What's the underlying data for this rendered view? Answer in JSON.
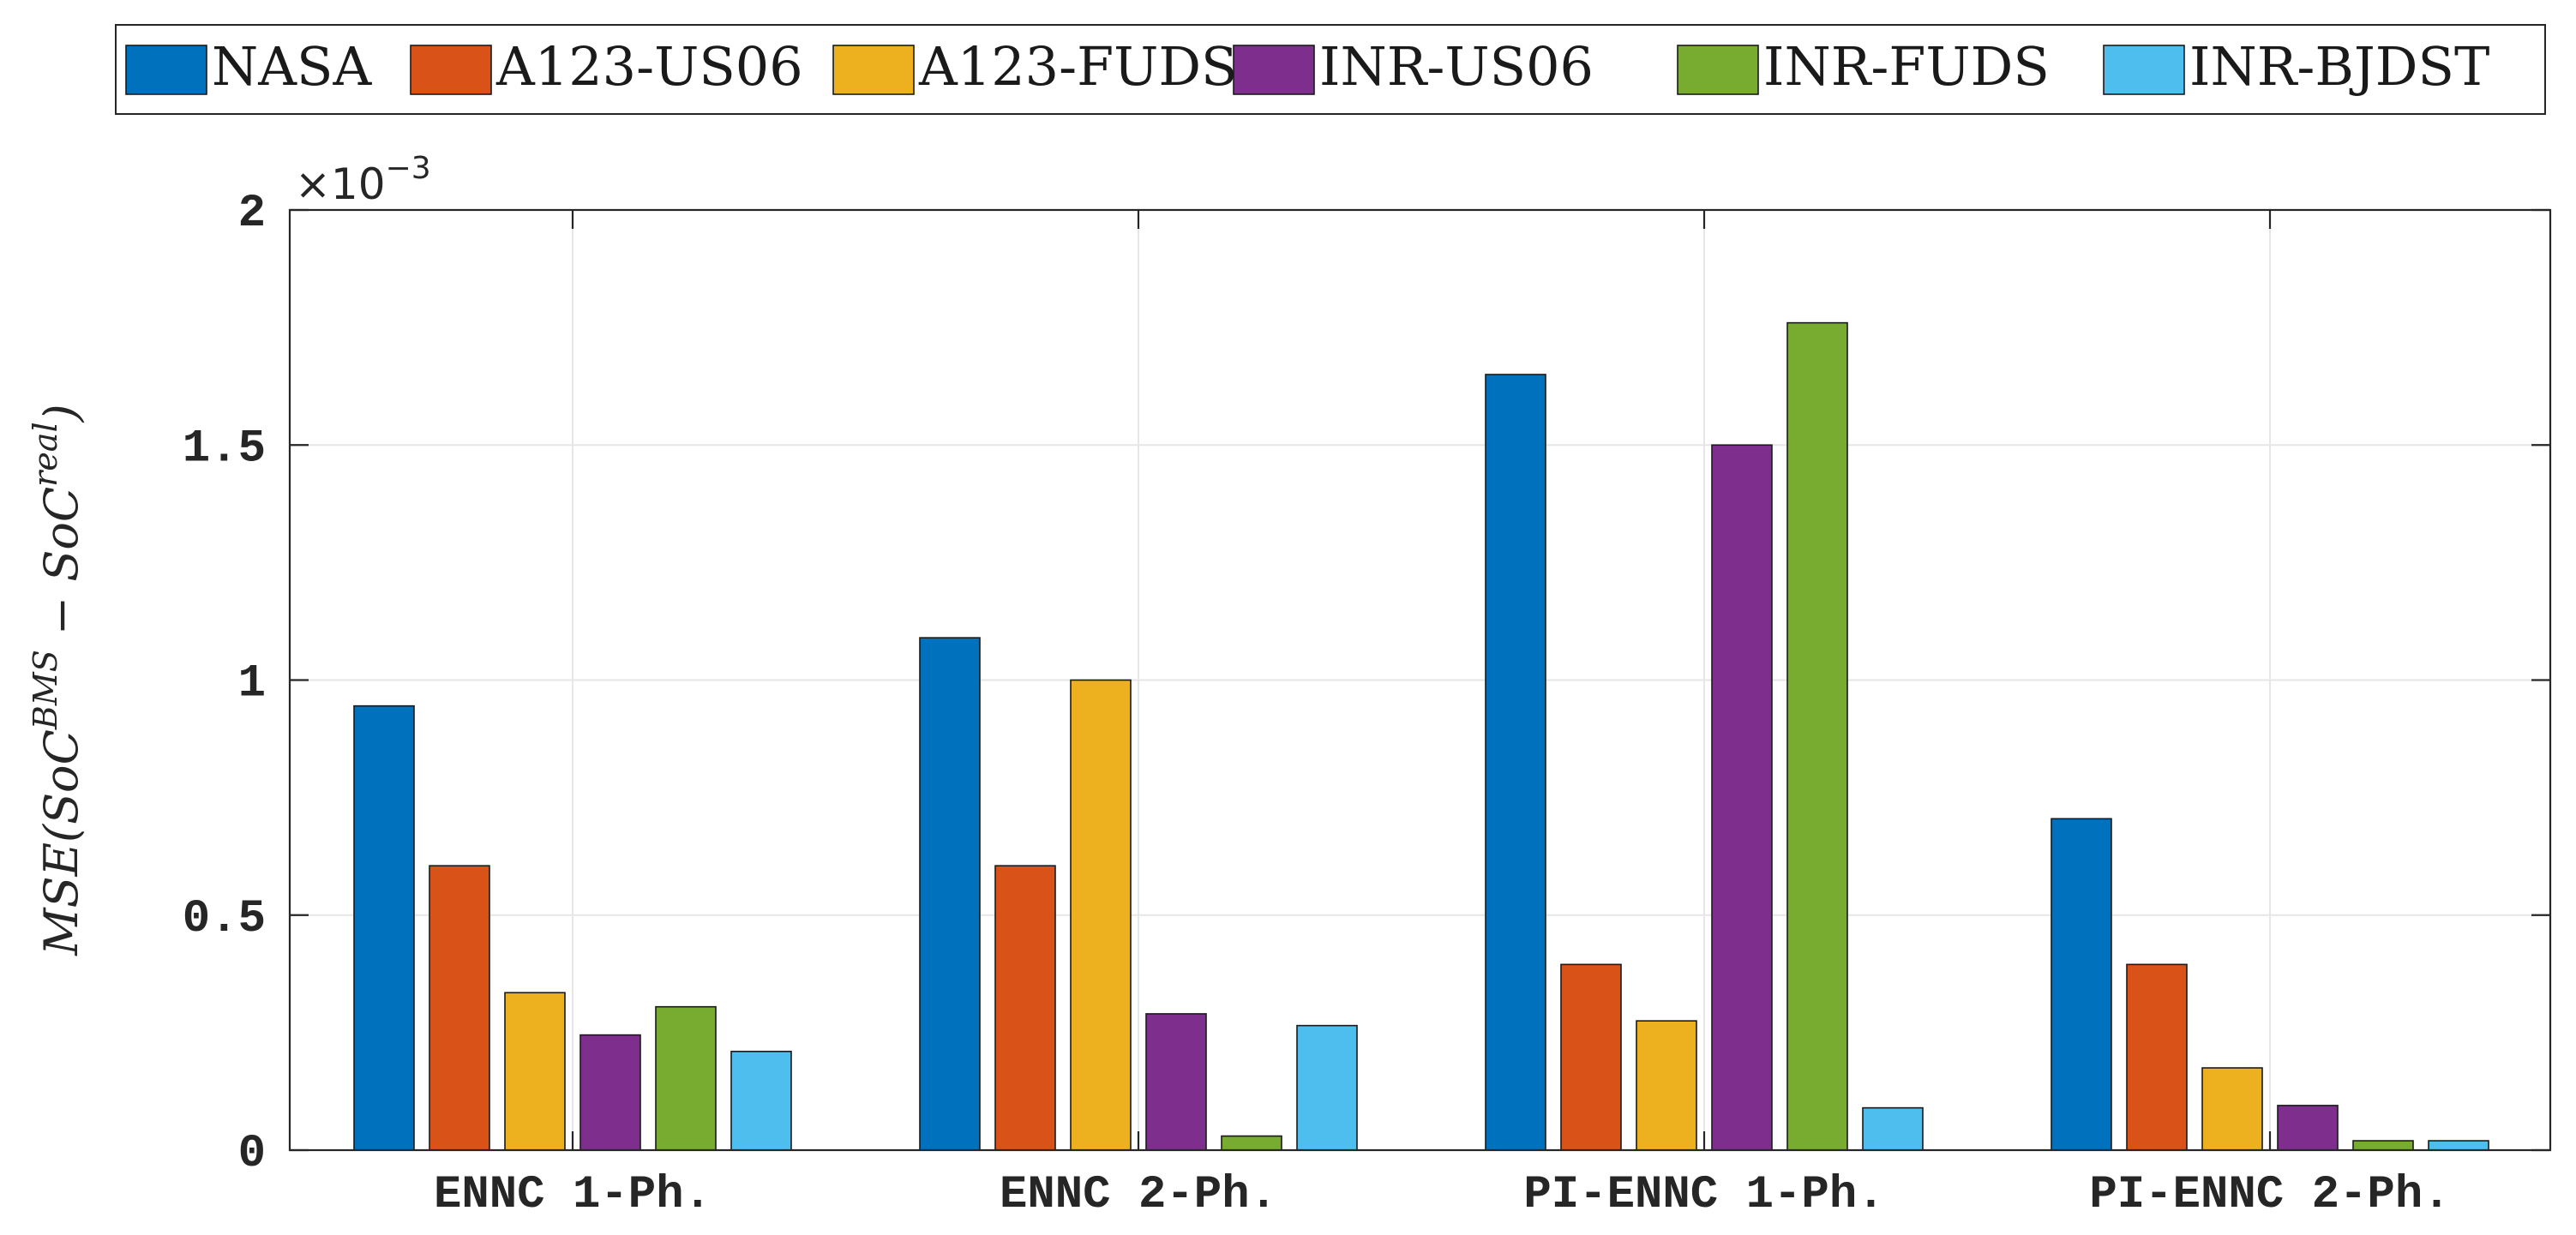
{
  "chart_data": {
    "type": "bar",
    "title": "",
    "xlabel": "",
    "ylabel_parts": {
      "prefix": "MSE(SoC",
      "sup1": "BMS",
      "middle": " − SoC",
      "sup2": "real",
      "suffix": ")"
    },
    "y_multiplier": {
      "base": "×10",
      "exponent": "−3"
    },
    "ylim": [
      0,
      2
    ],
    "yticks": [
      {
        "value": 0,
        "label": "0"
      },
      {
        "value": 0.5,
        "label": "0.5"
      },
      {
        "value": 1,
        "label": "1"
      },
      {
        "value": 1.5,
        "label": "1.5"
      },
      {
        "value": 2,
        "label": "2"
      }
    ],
    "grid": true,
    "legend_position": "top",
    "categories": [
      "ENNC 1-Ph.",
      "ENNC 2-Ph.",
      "PI-ENNC 1-Ph.",
      "PI-ENNC 2-Ph."
    ],
    "series": [
      {
        "name": "NASA",
        "color": "#0072BD",
        "values": [
          0.945,
          1.09,
          1.65,
          0.705
        ]
      },
      {
        "name": "A123-US06",
        "color": "#D95319",
        "values": [
          0.605,
          0.605,
          0.395,
          0.395
        ]
      },
      {
        "name": "A123-FUDS",
        "color": "#EDB120",
        "values": [
          0.335,
          1.0,
          0.275,
          0.175
        ]
      },
      {
        "name": "INR-US06",
        "color": "#7E2F8E",
        "values": [
          0.245,
          0.29,
          1.5,
          0.095
        ]
      },
      {
        "name": "INR-FUDS",
        "color": "#77AC30",
        "values": [
          0.305,
          0.03,
          1.76,
          0.02
        ]
      },
      {
        "name": "INR-BJDST",
        "color": "#4DBEEE",
        "values": [
          0.21,
          0.265,
          0.09,
          0.02
        ]
      }
    ]
  }
}
